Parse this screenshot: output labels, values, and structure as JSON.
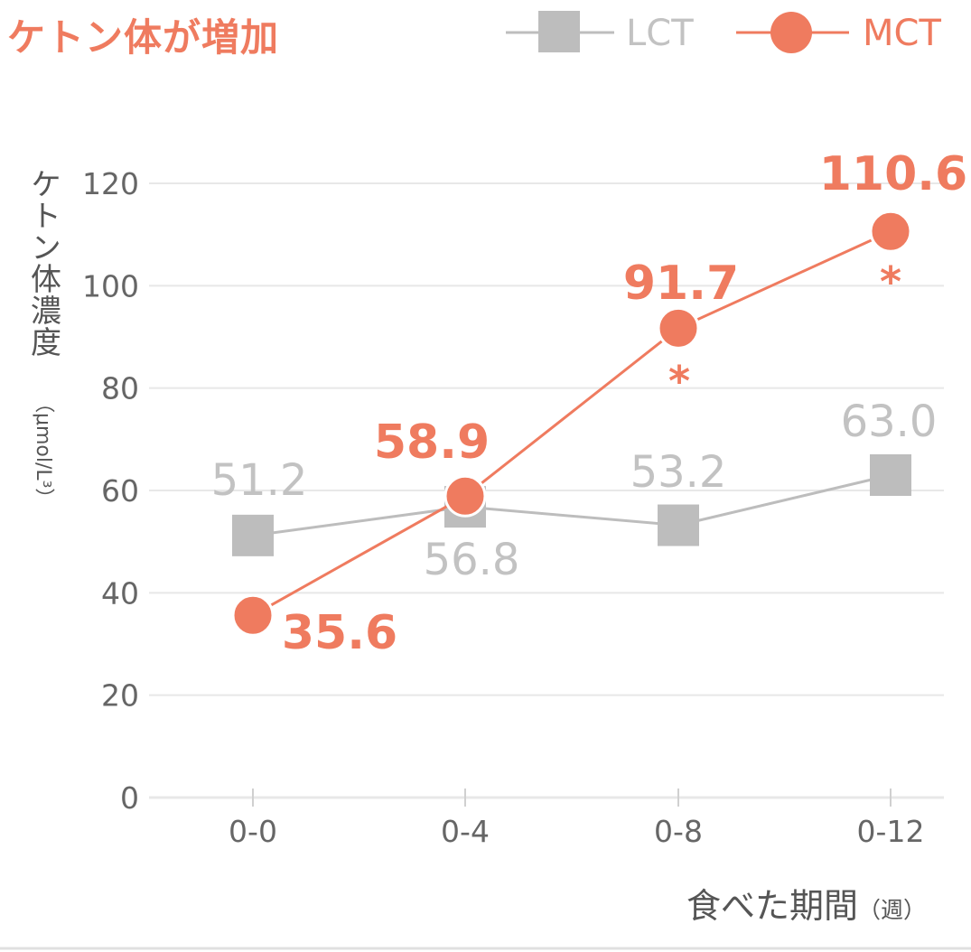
{
  "title": "ケトン体が増加",
  "colors": {
    "lct": "#bdbdbd",
    "mct": "#ef7b5f",
    "lct_label": "#c2c2c2",
    "grid": "#e8e8e8",
    "axis_text": "#666666",
    "asterisk": "#ef7b5f"
  },
  "legend": {
    "lct": "LCT",
    "mct": "MCT",
    "placement": "top-right"
  },
  "axes": {
    "ylabel": "ケトン体濃度",
    "yunit": "（μmol/L³）",
    "xlabel": "食べた期間",
    "xunit": "（週）"
  },
  "chart_data": {
    "type": "line",
    "title": "ケトン体が増加",
    "xlabel": "食べた期間（週）",
    "ylabel": "ケトン体濃度（μmol/L³）",
    "categories": [
      "0-0",
      "0-4",
      "0-8",
      "0-12"
    ],
    "ylim": [
      0,
      120
    ],
    "yticks": [
      0,
      20,
      40,
      60,
      80,
      100,
      120
    ],
    "grid": true,
    "legend_position": "top-right",
    "series": [
      {
        "name": "LCT",
        "marker": "square",
        "color": "#bdbdbd",
        "values": [
          51.2,
          56.8,
          53.2,
          63.0
        ],
        "labels": [
          "51.2",
          "56.8",
          "53.2",
          "63.0"
        ]
      },
      {
        "name": "MCT",
        "marker": "circle",
        "color": "#ef7b5f",
        "values": [
          35.6,
          58.9,
          91.7,
          110.6
        ],
        "labels": [
          "35.6",
          "58.9",
          "91.7",
          "110.6"
        ]
      }
    ],
    "annotations": [
      {
        "category": "0-8",
        "text": "*",
        "series": "MCT"
      },
      {
        "category": "0-12",
        "text": "*",
        "series": "MCT"
      }
    ]
  }
}
